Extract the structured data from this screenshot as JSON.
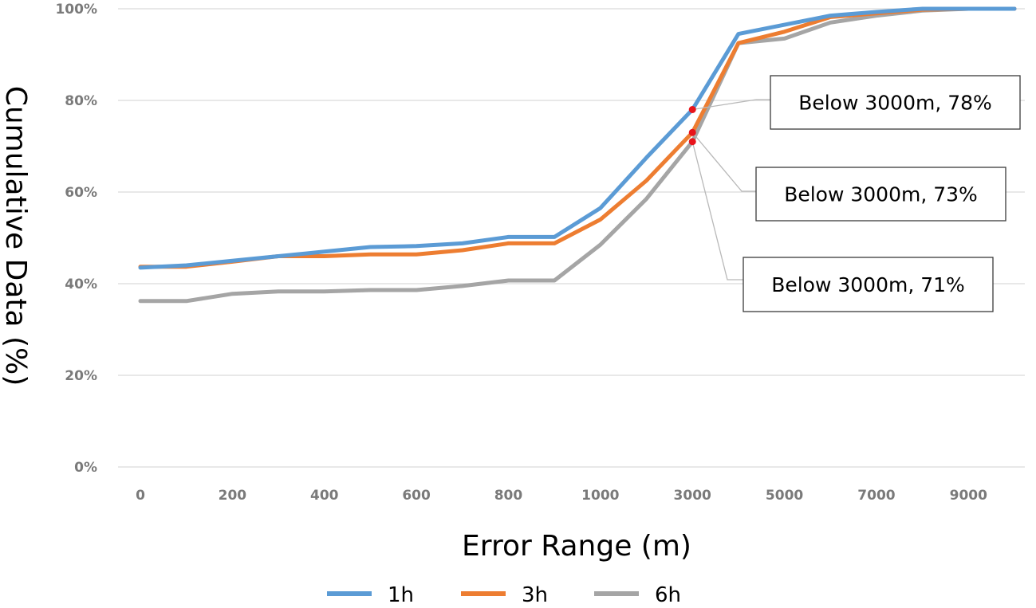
{
  "chart_data": {
    "type": "line",
    "xlabel": "Error Range (m)",
    "ylabel": "Cumulative Data (%)",
    "ylim": [
      0,
      100
    ],
    "yticks": [
      "0%",
      "20%",
      "40%",
      "60%",
      "80%",
      "100%"
    ],
    "x": [
      "0",
      "100",
      "200",
      "300",
      "400",
      "500",
      "600",
      "700",
      "800",
      "900",
      "1000",
      "2000",
      "3000",
      "4000",
      "5000",
      "6000",
      "7000",
      "8000",
      "9000",
      "10000"
    ],
    "xtick_labels": [
      "0",
      "200",
      "400",
      "600",
      "800",
      "1000",
      "3000",
      "5000",
      "7000",
      "9000"
    ],
    "grid": "horizontal",
    "legend_position": "bottom",
    "series": [
      {
        "name": "1h",
        "color": "#5b9bd5",
        "values": [
          43.5,
          44,
          45,
          46,
          47,
          48,
          48.2,
          48.8,
          50.2,
          50.2,
          56.5,
          67.5,
          78,
          94.5,
          96.5,
          98.5,
          99.3,
          100,
          100,
          100
        ]
      },
      {
        "name": "3h",
        "color": "#ed7d31",
        "values": [
          43.7,
          43.7,
          44.8,
          46,
          46,
          46.4,
          46.4,
          47.3,
          48.8,
          48.8,
          54,
          62.5,
          73,
          92.5,
          95,
          98.2,
          99,
          99.8,
          100,
          100
        ]
      },
      {
        "name": "6h",
        "color": "#a5a5a5",
        "values": [
          36.2,
          36.2,
          37.8,
          38.3,
          38.3,
          38.6,
          38.6,
          39.5,
          40.7,
          40.7,
          48.5,
          58.5,
          71,
          92.5,
          93.5,
          97,
          98.5,
          99.6,
          100,
          100
        ]
      }
    ],
    "annotations": [
      {
        "text": "Below 3000m, 78%",
        "x": "3000",
        "y": 78
      },
      {
        "text": "Below 3000m, 73%",
        "x": "3000",
        "y": 73
      },
      {
        "text": "Below 3000m, 71%",
        "x": "3000",
        "y": 71
      }
    ],
    "marker_color": "#e8141b"
  }
}
